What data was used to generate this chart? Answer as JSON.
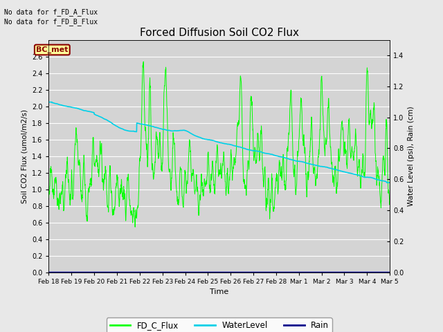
{
  "title": "Forced Diffusion Soil CO2 Flux",
  "xlabel": "Time",
  "ylabel_left": "Soil CO2 Flux (umol/m2/s)",
  "ylabel_right": "Water Level (psi), Rain (cm)",
  "text_no_data_A": "No data for f_FD_A_Flux",
  "text_no_data_B": "No data for f_FD_B_Flux",
  "bc_met_label": "BC_met",
  "legend_entries": [
    "FD_C_Flux",
    "WaterLevel",
    "Rain"
  ],
  "ylim_left": [
    0.0,
    2.8
  ],
  "ylim_right": [
    0.0,
    1.5
  ],
  "background_color": "#e8e8e8",
  "plot_bg_color": "#d4d4d4",
  "grid_color": "#ffffff",
  "date_labels": [
    "Feb 18",
    "Feb 19",
    "Feb 20",
    "Feb 21",
    "Feb 22",
    "Feb 23",
    "Feb 24",
    "Feb 25",
    "Feb 26",
    "Feb 27",
    "Feb 28",
    "Mar 1",
    "Mar 2",
    "Mar 3",
    "Mar 4",
    "Mar 5"
  ],
  "flux_color": "#00ff00",
  "water_color": "#00d0e8",
  "rain_color": "#00008b",
  "figsize": [
    6.4,
    4.8
  ],
  "dpi": 100
}
